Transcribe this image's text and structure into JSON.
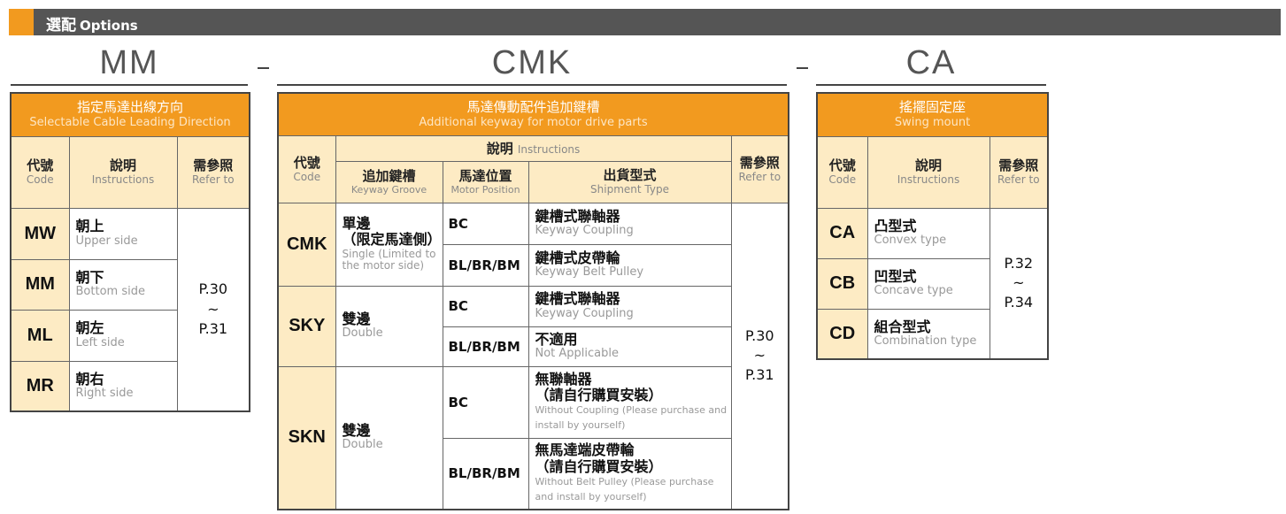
{
  "header": {
    "title_zh": "選配",
    "title_en": "Options"
  },
  "separator": "–",
  "mm": {
    "title": "MM",
    "table_title_zh": "指定馬達出線方向",
    "table_title_en": "Selectable Cable Leading Direction",
    "columns": [
      {
        "zh": "代號",
        "en": "Code"
      },
      {
        "zh": "說明",
        "en": "Instructions"
      },
      {
        "zh": "需參照",
        "en": "Refer to"
      }
    ],
    "rows": [
      {
        "code": "MW",
        "zh": "朝上",
        "en": "Upper side"
      },
      {
        "code": "MM",
        "zh": "朝下",
        "en": "Bottom side"
      },
      {
        "code": "ML",
        "zh": "朝左",
        "en": "Left side"
      },
      {
        "code": "MR",
        "zh": "朝右",
        "en": "Right side"
      }
    ],
    "refer": {
      "from": "P.30",
      "tilde": "~",
      "to": "P.31"
    }
  },
  "cmk": {
    "title": "CMK",
    "table_title_zh": "馬達傳動配件追加鍵槽",
    "table_title_en": "Additional keyway for motor drive parts",
    "columns": {
      "code": {
        "zh": "代號",
        "en": "Code"
      },
      "instructions": {
        "zh": "說明",
        "en": "Instructions"
      },
      "groove": {
        "zh": "追加鍵槽",
        "en": "Keyway Groove"
      },
      "position": {
        "zh": "馬達位置",
        "en": "Motor Position"
      },
      "shipment": {
        "zh": "出貨型式",
        "en": "Shipment Type"
      },
      "refer": {
        "zh": "需參照",
        "en": "Refer to"
      }
    },
    "rows": [
      {
        "code": "CMK",
        "groove_zh": "單邊\n（限定馬達側）",
        "groove_zh1": "單邊",
        "groove_zh2": "（限定馬達側）",
        "groove_en": "Single (Limited to the motor side)",
        "sub": [
          {
            "pos": "BC",
            "zh": "鍵槽式聯軸器",
            "en": "Keyway Coupling"
          },
          {
            "pos": "BL/BR/BM",
            "zh": "鍵槽式皮帶輪",
            "en": "Keyway Belt Pulley"
          }
        ]
      },
      {
        "code": "SKY",
        "groove_zh1": "雙邊",
        "groove_en": "Double",
        "sub": [
          {
            "pos": "BC",
            "zh": "鍵槽式聯軸器",
            "en": "Keyway Coupling"
          },
          {
            "pos": "BL/BR/BM",
            "zh": "不適用",
            "en": "Not Applicable"
          }
        ]
      },
      {
        "code": "SKN",
        "groove_zh1": "雙邊",
        "groove_en": "Double",
        "sub": [
          {
            "pos": "BC",
            "zh": "無聯軸器",
            "zh2": "（請自行購買安裝）",
            "en": "Without Coupling (Please purchase and install by yourself)"
          },
          {
            "pos": "BL/BR/BM",
            "zh": "無馬達端皮帶輪",
            "zh2": "（請自行購買安裝）",
            "en": "Without Belt Pulley  (Please purchase and install by yourself)"
          }
        ]
      }
    ],
    "refer": {
      "from": "P.30",
      "tilde": "~",
      "to": "P.31"
    }
  },
  "ca": {
    "title": "CA",
    "table_title_zh": "搖擺固定座",
    "table_title_en": "Swing mount",
    "columns": [
      {
        "zh": "代號",
        "en": "Code"
      },
      {
        "zh": "說明",
        "en": "Instructions"
      },
      {
        "zh": "需參照",
        "en": "Refer to"
      }
    ],
    "rows": [
      {
        "code": "CA",
        "zh": "凸型式",
        "en": "Convex type"
      },
      {
        "code": "CB",
        "zh": "凹型式",
        "en": "Concave type"
      },
      {
        "code": "CD",
        "zh": "組合型式",
        "en": "Combination type"
      }
    ],
    "refer": {
      "from": "P.32",
      "tilde": "~",
      "to": "P.34"
    }
  },
  "colors": {
    "accent": "#f29a1f",
    "header_bar": "#555555",
    "cream": "#fdebc4"
  }
}
